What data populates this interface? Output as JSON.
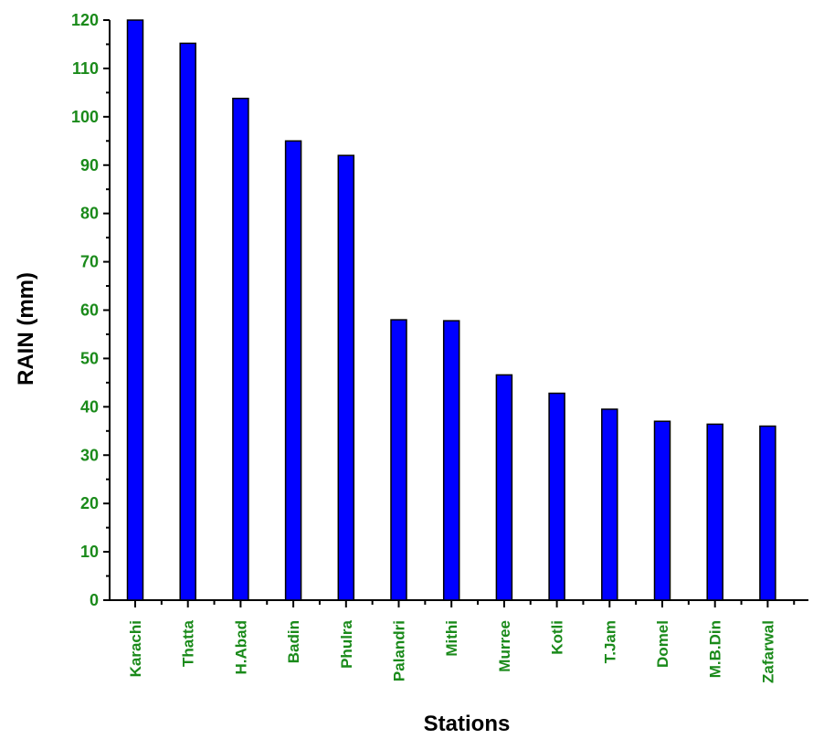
{
  "chart_data": {
    "type": "bar",
    "title": "",
    "xlabel": "Stations",
    "ylabel": "RAIN (mm)",
    "ylim": [
      0,
      120
    ],
    "ytick_step": 10,
    "yticks": [
      "0",
      "10",
      "20",
      "30",
      "40",
      "50",
      "60",
      "70",
      "80",
      "90",
      "100",
      "110",
      "120"
    ],
    "categories": [
      "Karachi",
      "Thatta",
      "H.Abad",
      "Badin",
      "Phulra",
      "Palandri",
      "Mithi",
      "Murree",
      "Kotli",
      "T.Jam",
      "Domel",
      "M.B.Din",
      "Zafarwal"
    ],
    "values": [
      120,
      115.2,
      103.8,
      95,
      92,
      58,
      57.8,
      46.6,
      42.8,
      39.5,
      37,
      36.4,
      36
    ],
    "bar_color": "#0000ff",
    "tick_label_color": "#1a8a1a",
    "grid": false,
    "legend": "none"
  }
}
